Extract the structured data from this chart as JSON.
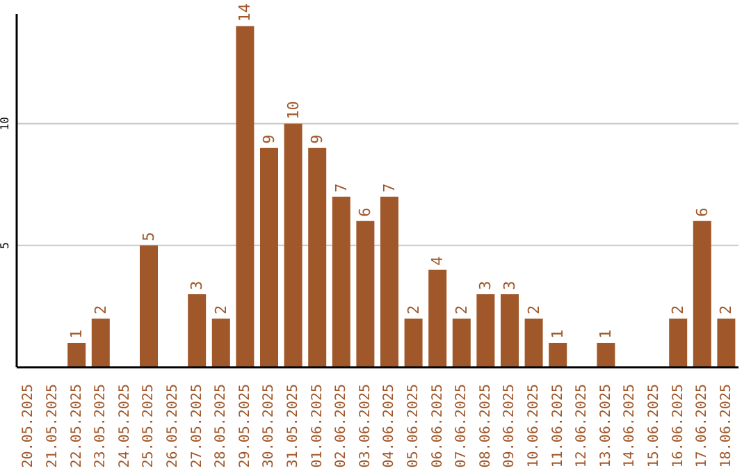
{
  "chart_data": {
    "type": "bar",
    "categories": [
      "20.05.2025",
      "21.05.2025",
      "22.05.2025",
      "23.05.2025",
      "24.05.2025",
      "25.05.2025",
      "26.05.2025",
      "27.05.2025",
      "28.05.2025",
      "29.05.2025",
      "30.05.2025",
      "31.05.2025",
      "01.06.2025",
      "02.06.2025",
      "03.06.2025",
      "04.06.2025",
      "05.06.2025",
      "06.06.2025",
      "07.06.2025",
      "08.06.2025",
      "09.06.2025",
      "10.06.2025",
      "11.06.2025",
      "12.06.2025",
      "13.06.2025",
      "14.06.2025",
      "15.06.2025",
      "16.06.2025",
      "17.06.2025",
      "18.06.2025"
    ],
    "values": [
      null,
      null,
      1,
      2,
      null,
      5,
      null,
      3,
      2,
      14,
      9,
      10,
      9,
      7,
      6,
      7,
      2,
      4,
      2,
      3,
      3,
      2,
      1,
      null,
      1,
      null,
      null,
      2,
      6,
      2
    ],
    "color": "#a0582a",
    "ylim": [
      0,
      14.5
    ],
    "yticks": [
      5,
      10
    ],
    "grid": "y",
    "data_labels": true
  }
}
